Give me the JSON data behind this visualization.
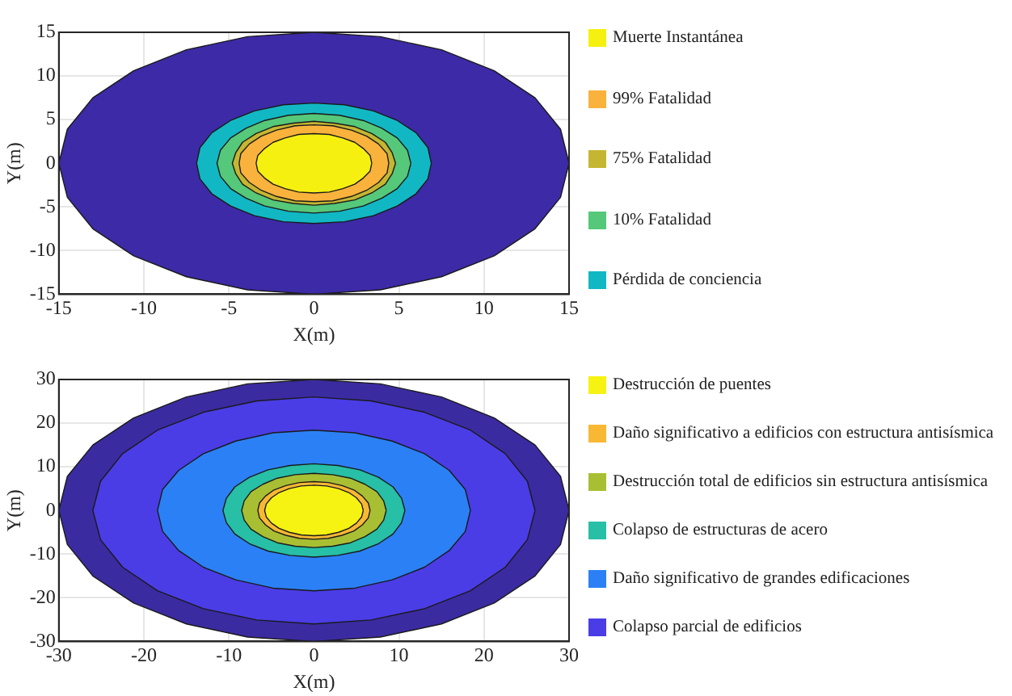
{
  "chart_data": [
    {
      "type": "area",
      "xlabel": "X(m)",
      "ylabel": "Y(m)",
      "xlim": [
        -15,
        15
      ],
      "ylim": [
        -15,
        15
      ],
      "xticks": [
        -15,
        -10,
        -5,
        0,
        5,
        10,
        15
      ],
      "yticks": [
        -15,
        -10,
        -5,
        0,
        5,
        10,
        15
      ],
      "grid": true,
      "legend": "right",
      "marker": "none",
      "series": [
        {
          "color": "#3d2aa6",
          "x": [
            15,
            14.5,
            13,
            10.6,
            7.5,
            3.9,
            0,
            -3.9,
            -7.5,
            -10.6,
            -13,
            -14.5,
            -15,
            -14.5,
            -13,
            -10.6,
            -7.5,
            -3.9,
            0,
            3.9,
            7.5,
            10.6,
            13,
            14.5,
            15
          ],
          "values": [
            0,
            3.9,
            7.5,
            10.6,
            13,
            14.5,
            15,
            14.5,
            13,
            10.6,
            7.5,
            3.9,
            0,
            -3.9,
            -7.5,
            -10.6,
            -13,
            -14.5,
            -15,
            -14.5,
            -13,
            -10.6,
            -7.5,
            -3.9,
            0
          ]
        },
        {
          "name": "Pérdida de conciencia",
          "color": "#12b7c4",
          "x": [
            6.9,
            6.7,
            6,
            4.9,
            3.5,
            1.8,
            0,
            -1.8,
            -3.5,
            -4.9,
            -6,
            -6.7,
            -6.9,
            -6.7,
            -6,
            -4.9,
            -3.5,
            -1.8,
            0,
            1.8,
            3.5,
            4.9,
            6,
            6.7,
            6.9
          ],
          "values": [
            0,
            1.8,
            3.5,
            4.9,
            6,
            6.7,
            6.9,
            6.7,
            6,
            4.9,
            3.5,
            1.8,
            0,
            -1.8,
            -3.5,
            -4.9,
            -6,
            -6.7,
            -6.9,
            -6.7,
            -6,
            -4.9,
            -3.5,
            -1.8,
            0
          ]
        },
        {
          "name": "10% Fatalidad",
          "color": "#55c87a",
          "x": [
            5.7,
            5.5,
            4.9,
            4,
            2.9,
            1.5,
            0,
            -1.5,
            -2.9,
            -4,
            -4.9,
            -5.5,
            -5.7,
            -5.5,
            -4.9,
            -4,
            -2.9,
            -1.5,
            0,
            1.5,
            2.9,
            4,
            4.9,
            5.5,
            5.7
          ],
          "values": [
            0,
            1.5,
            2.9,
            4,
            4.9,
            5.5,
            5.7,
            5.5,
            4.9,
            4,
            2.9,
            1.5,
            0,
            -1.5,
            -2.9,
            -4,
            -4.9,
            -5.5,
            -5.7,
            -5.5,
            -4.9,
            -4,
            -2.9,
            -1.5,
            0
          ]
        },
        {
          "name": "75% Fatalidad",
          "color": "#c4b631",
          "x": [
            4.8,
            4.6,
            4.2,
            3.4,
            2.4,
            1.2,
            0,
            -1.2,
            -2.4,
            -3.4,
            -4.2,
            -4.6,
            -4.8,
            -4.6,
            -4.2,
            -3.4,
            -2.4,
            -1.2,
            0,
            1.2,
            2.4,
            3.4,
            4.2,
            4.6,
            4.8
          ],
          "values": [
            0,
            1.2,
            2.4,
            3.4,
            4.2,
            4.6,
            4.8,
            4.6,
            4.2,
            3.4,
            2.4,
            1.2,
            0,
            -1.2,
            -2.4,
            -3.4,
            -4.2,
            -4.6,
            -4.8,
            -4.6,
            -4.2,
            -3.4,
            -2.4,
            -1.2,
            0
          ]
        },
        {
          "name": "99% Fatalidad",
          "color": "#f9b23c",
          "x": [
            4.4,
            4.3,
            3.8,
            3.1,
            2.2,
            1.1,
            0,
            -1.1,
            -2.2,
            -3.1,
            -3.8,
            -4.3,
            -4.4,
            -4.3,
            -3.8,
            -3.1,
            -2.2,
            -1.1,
            0,
            1.1,
            2.2,
            3.1,
            3.8,
            4.3,
            4.4
          ],
          "values": [
            0,
            1.1,
            2.2,
            3.1,
            3.8,
            4.3,
            4.4,
            4.3,
            3.8,
            3.1,
            2.2,
            1.1,
            0,
            -1.1,
            -2.2,
            -3.1,
            -3.8,
            -4.3,
            -4.4,
            -4.3,
            -3.8,
            -3.1,
            -2.2,
            -1.1,
            0
          ]
        },
        {
          "name": "Muerte Instantánea",
          "color": "#f5f010",
          "x": [
            3.4,
            3.3,
            2.9,
            2.4,
            1.7,
            0.9,
            0,
            -0.9,
            -1.7,
            -2.4,
            -2.9,
            -3.3,
            -3.4,
            -3.3,
            -2.9,
            -2.4,
            -1.7,
            -0.9,
            0,
            0.9,
            1.7,
            2.4,
            2.9,
            3.3,
            3.4
          ],
          "values": [
            0,
            0.9,
            1.7,
            2.4,
            2.9,
            3.3,
            3.4,
            3.3,
            2.9,
            2.4,
            1.7,
            0.9,
            0,
            -0.9,
            -1.7,
            -2.4,
            -2.9,
            -3.3,
            -3.4,
            -3.3,
            -2.9,
            -2.4,
            -1.7,
            -0.9,
            0
          ]
        }
      ]
    },
    {
      "type": "area",
      "xlabel": "X(m)",
      "ylabel": "Y(m)",
      "xlim": [
        -30,
        30
      ],
      "ylim": [
        -30,
        30
      ],
      "xticks": [
        -30,
        -20,
        -10,
        0,
        10,
        20,
        30
      ],
      "yticks": [
        -30,
        -20,
        -10,
        0,
        10,
        20,
        30
      ],
      "grid": true,
      "legend": "right",
      "marker": "none",
      "series": [
        {
          "color": "#3b2ba0",
          "x": [
            30,
            29,
            26,
            21.2,
            15,
            7.8,
            0,
            -7.8,
            -15,
            -21.2,
            -26,
            -29,
            -30,
            -29,
            -26,
            -21.2,
            -15,
            -7.8,
            0,
            7.8,
            15,
            21.2,
            26,
            29,
            30
          ],
          "values": [
            0,
            7.8,
            15,
            21.2,
            26,
            29,
            30,
            29,
            26,
            21.2,
            15,
            7.8,
            0,
            -7.8,
            -15,
            -21.2,
            -26,
            -29,
            -30,
            -29,
            -26,
            -21.2,
            -15,
            -7.8,
            0
          ]
        },
        {
          "name": "Colapso parcial de edificios",
          "color": "#4a3de6",
          "x": [
            26,
            25.1,
            22.5,
            18.4,
            13,
            6.7,
            0,
            -6.7,
            -13,
            -18.4,
            -22.5,
            -25.1,
            -26,
            -25.1,
            -22.5,
            -18.4,
            -13,
            -6.7,
            0,
            6.7,
            13,
            18.4,
            22.5,
            25.1,
            26
          ],
          "values": [
            0,
            6.7,
            13,
            18.4,
            22.5,
            25.1,
            26,
            25.1,
            22.5,
            18.4,
            13,
            6.7,
            0,
            -6.7,
            -13,
            -18.4,
            -22.5,
            -25.1,
            -26,
            -25.1,
            -22.5,
            -18.4,
            -13,
            -6.7,
            0
          ]
        },
        {
          "name": "Daño significativo de grandes edificaciones",
          "color": "#2c80f5",
          "x": [
            18.4,
            17.8,
            15.9,
            13,
            9.2,
            4.8,
            0,
            -4.8,
            -9.2,
            -13,
            -15.9,
            -17.8,
            -18.4,
            -17.8,
            -15.9,
            -13,
            -9.2,
            -4.8,
            0,
            4.8,
            9.2,
            13,
            15.9,
            17.8,
            18.4
          ],
          "values": [
            0,
            4.8,
            9.2,
            13,
            15.9,
            17.8,
            18.4,
            17.8,
            15.9,
            13,
            9.2,
            4.8,
            0,
            -4.8,
            -9.2,
            -13,
            -15.9,
            -17.8,
            -18.4,
            -17.8,
            -15.9,
            -13,
            -9.2,
            -4.8,
            0
          ]
        },
        {
          "name": "Colapso de estructuras de acero",
          "color": "#27bfa5",
          "x": [
            10.7,
            10.3,
            9.3,
            7.6,
            5.4,
            2.8,
            0,
            -2.8,
            -5.4,
            -7.6,
            -9.3,
            -10.3,
            -10.7,
            -10.3,
            -9.3,
            -7.6,
            -5.4,
            -2.8,
            0,
            2.8,
            5.4,
            7.6,
            9.3,
            10.3,
            10.7
          ],
          "values": [
            0,
            2.8,
            5.4,
            7.6,
            9.3,
            10.3,
            10.7,
            10.3,
            9.3,
            7.6,
            5.4,
            2.8,
            0,
            -2.8,
            -5.4,
            -7.6,
            -9.3,
            -10.3,
            -10.7,
            -10.3,
            -9.3,
            -7.6,
            -5.4,
            -2.8,
            0
          ]
        },
        {
          "name": "Destrucción total de edificios sin estructura antisísmica",
          "color": "#a9bf33",
          "x": [
            8.5,
            8.2,
            7.4,
            6,
            4.3,
            2.2,
            0,
            -2.2,
            -4.3,
            -6,
            -7.4,
            -8.2,
            -8.5,
            -8.2,
            -7.4,
            -6,
            -4.3,
            -2.2,
            0,
            2.2,
            4.3,
            6,
            7.4,
            8.2,
            8.5
          ],
          "values": [
            0,
            2.2,
            4.3,
            6,
            7.4,
            8.2,
            8.5,
            8.2,
            7.4,
            6,
            4.3,
            2.2,
            0,
            -2.2,
            -4.3,
            -6,
            -7.4,
            -8.2,
            -8.5,
            -8.2,
            -7.4,
            -6,
            -4.3,
            -2.2,
            0
          ]
        },
        {
          "name": "Daño significativo a edificios con estructura antisísmica",
          "color": "#f8b834",
          "x": [
            6.6,
            6.4,
            5.7,
            4.7,
            3.3,
            1.7,
            0,
            -1.7,
            -3.3,
            -4.7,
            -5.7,
            -6.4,
            -6.6,
            -6.4,
            -5.7,
            -4.7,
            -3.3,
            -1.7,
            0,
            1.7,
            3.3,
            4.7,
            5.7,
            6.4,
            6.6
          ],
          "values": [
            0,
            1.7,
            3.3,
            4.7,
            5.7,
            6.4,
            6.6,
            6.4,
            5.7,
            4.7,
            3.3,
            1.7,
            0,
            -1.7,
            -3.3,
            -4.7,
            -5.7,
            -6.4,
            -6.6,
            -6.4,
            -5.7,
            -4.7,
            -3.3,
            -1.7,
            0
          ]
        },
        {
          "name": "Destrucción de puentes",
          "color": "#f6f212",
          "x": [
            5.8,
            5.6,
            5,
            4.1,
            2.9,
            1.5,
            0,
            -1.5,
            -2.9,
            -4.1,
            -5,
            -5.6,
            -5.8,
            -5.6,
            -5,
            -4.1,
            -2.9,
            -1.5,
            0,
            1.5,
            2.9,
            4.1,
            5,
            5.6,
            5.8
          ],
          "values": [
            0,
            1.5,
            2.9,
            4.1,
            5,
            5.6,
            5.8,
            5.6,
            5,
            4.1,
            2.9,
            1.5,
            0,
            -1.5,
            -2.9,
            -4.1,
            -5,
            -5.6,
            -5.8,
            -5.6,
            -5,
            -4.1,
            -2.9,
            -1.5,
            0
          ]
        }
      ]
    }
  ]
}
